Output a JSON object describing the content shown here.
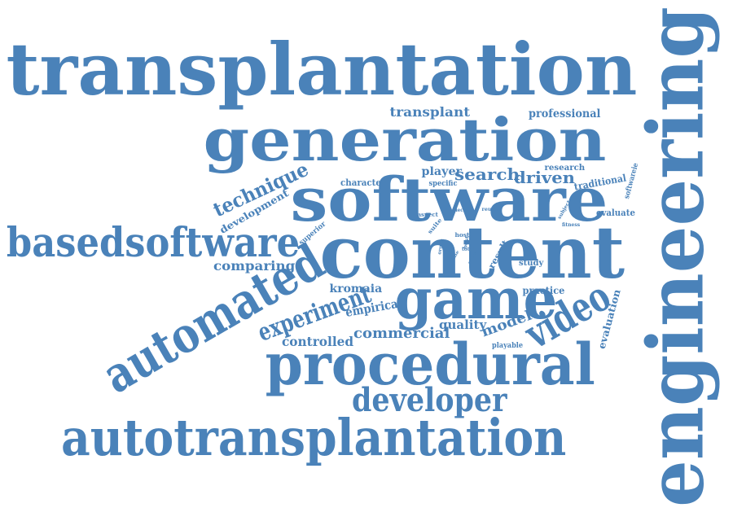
{
  "colors": {
    "text": "#4a82b9",
    "background": "#ffffff"
  },
  "words": [
    {
      "id": "transplantation",
      "text": "transplantation"
    },
    {
      "id": "engineering",
      "text": "engineering"
    },
    {
      "id": "generation",
      "text": "generation"
    },
    {
      "id": "software",
      "text": "software"
    },
    {
      "id": "content",
      "text": "content"
    },
    {
      "id": "basedsoftware",
      "text": "basedsoftware"
    },
    {
      "id": "automated",
      "text": "automated"
    },
    {
      "id": "game",
      "text": "game"
    },
    {
      "id": "procedural",
      "text": "procedural"
    },
    {
      "id": "autotransplantation",
      "text": "autotransplantation"
    },
    {
      "id": "developer",
      "text": "developer"
    },
    {
      "id": "video",
      "text": "video"
    },
    {
      "id": "experiment",
      "text": "experiment"
    },
    {
      "id": "technique",
      "text": "technique"
    },
    {
      "id": "search",
      "text": "search"
    },
    {
      "id": "driven",
      "text": "driven"
    },
    {
      "id": "comparing",
      "text": "comparing"
    },
    {
      "id": "commercial",
      "text": "commercial"
    },
    {
      "id": "controlled",
      "text": "controlled"
    },
    {
      "id": "empirical",
      "text": "empirical"
    },
    {
      "id": "model",
      "text": "model"
    },
    {
      "id": "quality",
      "text": "quality"
    },
    {
      "id": "transplant",
      "text": "transplant"
    },
    {
      "id": "professional",
      "text": "professional"
    },
    {
      "id": "player",
      "text": "player"
    },
    {
      "id": "development",
      "text": "development"
    },
    {
      "id": "kromaia",
      "text": "kromaia"
    },
    {
      "id": "practice",
      "text": "practice"
    },
    {
      "id": "evaluation",
      "text": "evaluation"
    },
    {
      "id": "traditional",
      "text": "traditional"
    },
    {
      "id": "evaluate",
      "text": "evaluate"
    },
    {
      "id": "research",
      "text": "research"
    },
    {
      "id": "character",
      "text": "character"
    },
    {
      "id": "softwareie",
      "text": "softwareie"
    },
    {
      "id": "specific",
      "text": "specific"
    },
    {
      "id": "superior",
      "text": "superior"
    },
    {
      "id": "result",
      "text": "result"
    },
    {
      "id": "study",
      "text": "study"
    },
    {
      "id": "playable",
      "text": "playable"
    },
    {
      "id": "aspect",
      "text": "aspect"
    },
    {
      "id": "suite",
      "text": "suite"
    },
    {
      "id": "pieces",
      "text": "pieces"
    },
    {
      "id": "host",
      "text": "host"
    },
    {
      "id": "reuse",
      "text": "reuse"
    },
    {
      "id": "subject",
      "text": "subject"
    },
    {
      "id": "fitness",
      "text": "fitness"
    },
    {
      "id": "organ",
      "text": "organ"
    },
    {
      "id": "best",
      "text": "best"
    },
    {
      "id": "total",
      "text": "total"
    },
    {
      "id": "time",
      "text": "time"
    },
    {
      "id": "code",
      "text": "code"
    }
  ]
}
